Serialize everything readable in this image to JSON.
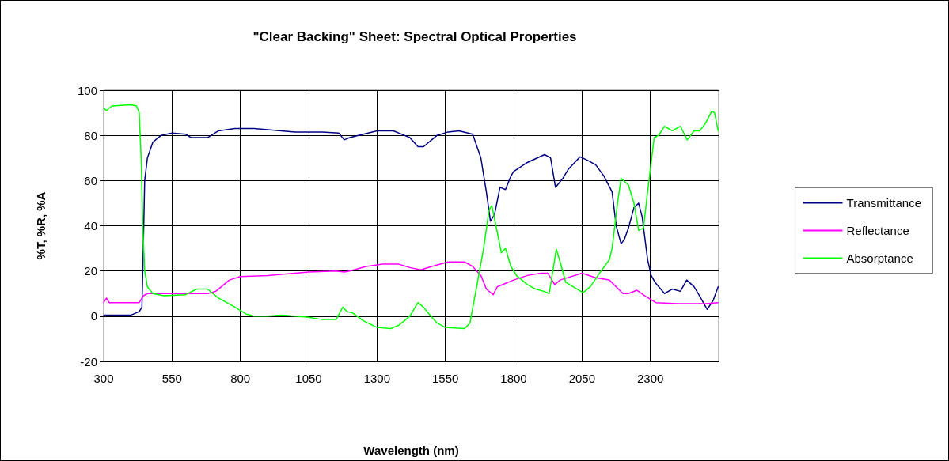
{
  "chart_data": {
    "type": "line",
    "title": "\"Clear Backing\" Sheet: Spectral Optical Properties",
    "xlabel": "Wavelength (nm)",
    "ylabel": "%T, %R, %A",
    "xlim": [
      300,
      2550
    ],
    "xticks": [
      300,
      550,
      800,
      1050,
      1300,
      1550,
      1800,
      2050,
      2300,
      {
        "value": 2550,
        "label": null
      }
    ],
    "ylim": [
      -20,
      100
    ],
    "yticks": [
      -20,
      0,
      20,
      40,
      60,
      80,
      100
    ],
    "grid": true,
    "legend": "right",
    "marker": "none",
    "line_style": "solid",
    "series": [
      {
        "name": "Transmittance",
        "color": "#000080",
        "x": [
          300,
          350,
          400,
          430,
          440,
          445,
          450,
          460,
          480,
          510,
          550,
          600,
          620,
          680,
          720,
          780,
          850,
          900,
          950,
          1000,
          1100,
          1160,
          1180,
          1200,
          1250,
          1300,
          1360,
          1420,
          1450,
          1470,
          1520,
          1560,
          1600,
          1650,
          1680,
          1700,
          1715,
          1730,
          1750,
          1770,
          1790,
          1800,
          1850,
          1913,
          1935,
          1953,
          1980,
          2000,
          2043,
          2070,
          2100,
          2130,
          2160,
          2175,
          2193,
          2205,
          2220,
          2240,
          2257,
          2270,
          2290,
          2303,
          2317,
          2352,
          2380,
          2410,
          2433,
          2460,
          2480,
          2508,
          2530,
          2548
        ],
        "values": [
          0.5,
          0.5,
          0.5,
          2,
          4,
          30,
          60,
          70,
          77,
          80,
          81,
          80.5,
          79,
          79,
          82,
          83,
          83,
          82.5,
          82,
          81.5,
          81.5,
          81,
          78,
          79,
          80.5,
          82,
          82,
          79,
          75,
          75,
          80,
          81.5,
          82,
          80.5,
          70,
          55,
          42,
          45,
          57,
          56,
          62,
          64,
          68,
          71.5,
          70,
          57,
          61,
          65,
          70.5,
          69,
          67,
          62,
          55,
          40,
          32,
          34,
          39,
          48,
          50,
          44,
          25,
          18,
          15,
          10,
          12,
          11,
          16,
          13,
          9,
          3,
          7,
          13
        ]
      },
      {
        "name": "Reflectance",
        "color": "#ff00ff",
        "x": [
          300,
          310,
          320,
          350,
          400,
          430,
          445,
          460,
          550,
          600,
          680,
          710,
          760,
          800,
          900,
          1000,
          1050,
          1150,
          1180,
          1200,
          1260,
          1320,
          1380,
          1420,
          1460,
          1500,
          1560,
          1620,
          1650,
          1680,
          1700,
          1725,
          1740,
          1760,
          1800,
          1850,
          1900,
          1925,
          1950,
          1970,
          2050,
          2100,
          2150,
          2200,
          2220,
          2250,
          2280,
          2320,
          2400,
          2500,
          2548
        ],
        "values": [
          6,
          8,
          6,
          6,
          6,
          6,
          9,
          10,
          10,
          10,
          10,
          11,
          16,
          17.5,
          18,
          19,
          19.5,
          20,
          19.5,
          20,
          22,
          23,
          23,
          21.5,
          20.5,
          22,
          24,
          24,
          22,
          18,
          12,
          9.5,
          13,
          14,
          16,
          18,
          19,
          19,
          14,
          16,
          19,
          17,
          16,
          10,
          10,
          11.5,
          9,
          6,
          5.5,
          5.5,
          6
        ]
      },
      {
        "name": "Absorptance",
        "color": "#00ff00",
        "x": [
          300,
          310,
          330,
          400,
          420,
          430,
          437,
          443,
          450,
          460,
          480,
          520,
          600,
          640,
          680,
          720,
          780,
          820,
          850,
          900,
          950,
          1000,
          1050,
          1100,
          1150,
          1175,
          1190,
          1210,
          1250,
          1300,
          1350,
          1380,
          1420,
          1450,
          1470,
          1490,
          1520,
          1550,
          1620,
          1640,
          1660,
          1690,
          1710,
          1720,
          1735,
          1755,
          1770,
          1790,
          1810,
          1850,
          1880,
          1910,
          1930,
          1956,
          1970,
          1990,
          2054,
          2080,
          2120,
          2150,
          2160,
          2180,
          2193,
          2220,
          2240,
          2257,
          2275,
          2290,
          2314,
          2330,
          2352,
          2380,
          2410,
          2435,
          2460,
          2480,
          2500,
          2525,
          2535,
          2548
        ],
        "values": [
          92,
          91,
          93,
          93.5,
          93,
          90,
          70,
          40,
          20,
          13,
          10,
          9,
          9.5,
          12,
          12,
          8,
          4,
          1,
          0,
          0,
          0.5,
          0,
          -0.5,
          -1.5,
          -1.5,
          4,
          2,
          1.5,
          -2,
          -5,
          -5.5,
          -4,
          0,
          6,
          4,
          1,
          -3,
          -5,
          -5.5,
          -3,
          10,
          30,
          47,
          49,
          40,
          28,
          30,
          22,
          18,
          14,
          12,
          11,
          10,
          29.6,
          24,
          15,
          10.4,
          13,
          20,
          25,
          30,
          50,
          61,
          58,
          50,
          38,
          39,
          55,
          79,
          80,
          84,
          82,
          84,
          78,
          82,
          82,
          85,
          90.7,
          90,
          82
        ]
      }
    ]
  }
}
